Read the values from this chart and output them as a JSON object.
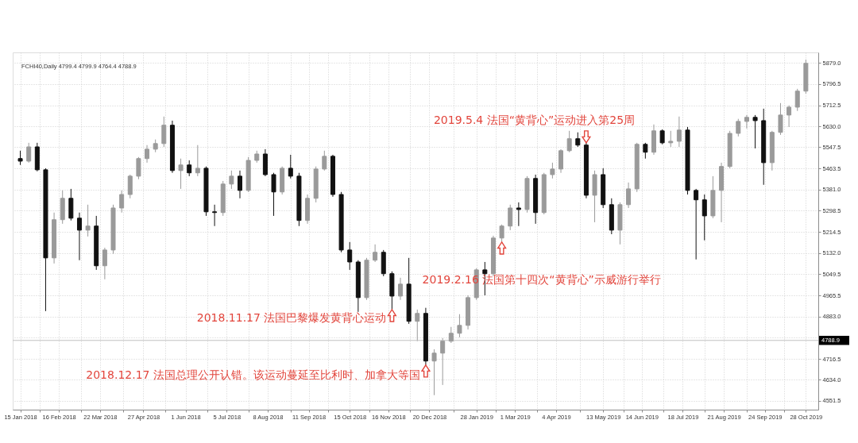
{
  "chart_data": {
    "type": "candlestick",
    "subtitle": "FCHI40,Daily 4799.4 4799.9 4764.4 4788.9",
    "x": [
      "2018-01-15",
      "2018-01-22",
      "2018-01-29",
      "2018-02-05",
      "2018-02-12",
      "2018-02-19",
      "2018-02-26",
      "2018-03-05",
      "2018-03-12",
      "2018-03-19",
      "2018-03-26",
      "2018-04-02",
      "2018-04-09",
      "2018-04-16",
      "2018-04-23",
      "2018-04-30",
      "2018-05-07",
      "2018-05-14",
      "2018-05-21",
      "2018-05-28",
      "2018-06-04",
      "2018-06-11",
      "2018-06-18",
      "2018-06-25",
      "2018-07-02",
      "2018-07-09",
      "2018-07-16",
      "2018-07-23",
      "2018-07-30",
      "2018-08-06",
      "2018-08-13",
      "2018-08-20",
      "2018-08-27",
      "2018-09-03",
      "2018-09-10",
      "2018-09-17",
      "2018-09-24",
      "2018-10-01",
      "2018-10-08",
      "2018-10-15",
      "2018-10-22",
      "2018-10-29",
      "2018-11-05",
      "2018-11-12",
      "2018-11-19",
      "2018-11-26",
      "2018-12-03",
      "2018-12-10",
      "2018-12-17",
      "2018-12-24",
      "2018-12-31",
      "2019-01-07",
      "2019-01-14",
      "2019-01-21",
      "2019-01-28",
      "2019-02-04",
      "2019-02-11",
      "2019-02-18",
      "2019-02-25",
      "2019-03-04",
      "2019-03-11",
      "2019-03-18",
      "2019-03-25",
      "2019-04-01",
      "2019-04-08",
      "2019-04-15",
      "2019-04-22",
      "2019-04-29",
      "2019-05-06",
      "2019-05-13",
      "2019-05-20",
      "2019-05-27",
      "2019-06-03",
      "2019-06-10",
      "2019-06-17",
      "2019-06-24",
      "2019-07-01",
      "2019-07-08",
      "2019-07-15",
      "2019-07-22",
      "2019-07-29",
      "2019-08-05",
      "2019-08-12",
      "2019-08-19",
      "2019-08-26",
      "2019-09-02",
      "2019-09-09",
      "2019-09-16",
      "2019-09-23",
      "2019-09-30",
      "2019-10-07",
      "2019-10-14",
      "2019-10-21",
      "2019-10-28"
    ],
    "ohlc": [
      [
        5503,
        5534,
        5478,
        5493
      ],
      [
        5493,
        5565,
        5487,
        5549
      ],
      [
        5549,
        5565,
        5453,
        5459
      ],
      [
        5459,
        5465,
        4904,
        5113
      ],
      [
        5113,
        5291,
        5091,
        5263
      ],
      [
        5263,
        5378,
        5247,
        5347
      ],
      [
        5347,
        5384,
        5260,
        5269
      ],
      [
        5269,
        5291,
        5104,
        5222
      ],
      [
        5222,
        5322,
        5197,
        5238
      ],
      [
        5238,
        5278,
        5066,
        5082
      ],
      [
        5082,
        5153,
        5029,
        5144
      ],
      [
        5144,
        5322,
        5129,
        5309
      ],
      [
        5309,
        5378,
        5291,
        5362
      ],
      [
        5362,
        5440,
        5347,
        5434
      ],
      [
        5434,
        5509,
        5422,
        5503
      ],
      [
        5503,
        5556,
        5487,
        5540
      ],
      [
        5540,
        5578,
        5528,
        5562
      ],
      [
        5562,
        5668,
        5549,
        5634
      ],
      [
        5634,
        5652,
        5447,
        5456
      ],
      [
        5456,
        5503,
        5384,
        5478
      ],
      [
        5478,
        5496,
        5434,
        5447
      ],
      [
        5447,
        5556,
        5434,
        5465
      ],
      [
        5465,
        5472,
        5278,
        5294
      ],
      [
        5294,
        5322,
        5238,
        5291
      ],
      [
        5291,
        5415,
        5278,
        5403
      ],
      [
        5403,
        5456,
        5384,
        5434
      ],
      [
        5434,
        5456,
        5347,
        5378
      ],
      [
        5378,
        5509,
        5372,
        5496
      ],
      [
        5496,
        5534,
        5487,
        5521
      ],
      [
        5521,
        5540,
        5434,
        5440
      ],
      [
        5440,
        5447,
        5278,
        5372
      ],
      [
        5372,
        5472,
        5362,
        5465
      ],
      [
        5465,
        5518,
        5425,
        5434
      ],
      [
        5434,
        5447,
        5238,
        5260
      ],
      [
        5260,
        5362,
        5247,
        5347
      ],
      [
        5347,
        5472,
        5331,
        5462
      ],
      [
        5462,
        5534,
        5456,
        5512
      ],
      [
        5512,
        5518,
        5353,
        5362
      ],
      [
        5362,
        5372,
        5135,
        5144
      ],
      [
        5144,
        5175,
        5066,
        5097
      ],
      [
        5097,
        5104,
        4901,
        4957
      ],
      [
        4957,
        5113,
        4948,
        5104
      ],
      [
        5104,
        5166,
        5097,
        5135
      ],
      [
        5135,
        5144,
        5041,
        5051
      ],
      [
        5051,
        5060,
        4910,
        4963
      ],
      [
        4963,
        5035,
        4948,
        5010
      ],
      [
        5010,
        5113,
        4854,
        4864
      ],
      [
        4864,
        4910,
        4786,
        4895
      ],
      [
        4895,
        4917,
        4692,
        4708
      ],
      [
        4708,
        4754,
        4574,
        4739
      ],
      [
        4739,
        4798,
        4614,
        4786
      ],
      [
        4786,
        4842,
        4779,
        4817
      ],
      [
        4817,
        4892,
        4801,
        4848
      ],
      [
        4848,
        4966,
        4832,
        4957
      ],
      [
        4957,
        5072,
        4948,
        5066
      ],
      [
        5066,
        5097,
        4966,
        5051
      ],
      [
        5051,
        5200,
        5041,
        5191
      ],
      [
        5191,
        5244,
        5175,
        5238
      ],
      [
        5238,
        5322,
        5222,
        5309
      ],
      [
        5309,
        5331,
        5238,
        5303
      ],
      [
        5303,
        5434,
        5291,
        5425
      ],
      [
        5425,
        5440,
        5247,
        5291
      ],
      [
        5291,
        5447,
        5284,
        5440
      ],
      [
        5440,
        5487,
        5425,
        5462
      ],
      [
        5462,
        5540,
        5447,
        5534
      ],
      [
        5534,
        5612,
        5528,
        5581
      ],
      [
        5581,
        5606,
        5549,
        5556
      ],
      [
        5556,
        5565,
        5347,
        5359
      ],
      [
        5359,
        5456,
        5253,
        5440
      ],
      [
        5440,
        5465,
        5309,
        5322
      ],
      [
        5322,
        5347,
        5206,
        5222
      ],
      [
        5222,
        5331,
        5166,
        5322
      ],
      [
        5322,
        5409,
        5309,
        5384
      ],
      [
        5384,
        5565,
        5372,
        5559
      ],
      [
        5559,
        5565,
        5503,
        5528
      ],
      [
        5528,
        5637,
        5518,
        5612
      ],
      [
        5612,
        5618,
        5559,
        5565
      ],
      [
        5565,
        5612,
        5549,
        5571
      ],
      [
        5571,
        5668,
        5549,
        5615
      ],
      [
        5615,
        5627,
        5362,
        5378
      ],
      [
        5378,
        5384,
        5107,
        5341
      ],
      [
        5341,
        5362,
        5182,
        5278
      ],
      [
        5278,
        5434,
        5269,
        5378
      ],
      [
        5378,
        5487,
        5253,
        5472
      ],
      [
        5472,
        5612,
        5465,
        5602
      ],
      [
        5602,
        5659,
        5590,
        5649
      ],
      [
        5649,
        5674,
        5621,
        5665
      ],
      [
        5665,
        5674,
        5543,
        5652
      ],
      [
        5652,
        5699,
        5400,
        5487
      ],
      [
        5487,
        5612,
        5456,
        5606
      ],
      [
        5606,
        5721,
        5596,
        5674
      ],
      [
        5674,
        5712,
        5627,
        5705
      ],
      [
        5705,
        5777,
        5690,
        5768
      ],
      [
        5768,
        5892,
        5758,
        5877
      ]
    ],
    "colors": [
      "#111111",
      "#9a9a9a",
      "#111111",
      "#111111",
      "#9a9a9a",
      "#9a9a9a",
      "#111111",
      "#111111",
      "#9a9a9a",
      "#111111",
      "#9a9a9a",
      "#9a9a9a",
      "#9a9a9a",
      "#9a9a9a",
      "#9a9a9a",
      "#9a9a9a",
      "#9a9a9a",
      "#9a9a9a",
      "#111111",
      "#9a9a9a",
      "#111111",
      "#9a9a9a",
      "#111111",
      "#111111",
      "#9a9a9a",
      "#9a9a9a",
      "#111111",
      "#9a9a9a",
      "#9a9a9a",
      "#111111",
      "#111111",
      "#9a9a9a",
      "#111111",
      "#111111",
      "#9a9a9a",
      "#9a9a9a",
      "#9a9a9a",
      "#111111",
      "#111111",
      "#111111",
      "#111111",
      "#9a9a9a",
      "#9a9a9a",
      "#111111",
      "#111111",
      "#9a9a9a",
      "#111111",
      "#9a9a9a",
      "#111111",
      "#9a9a9a",
      "#9a9a9a",
      "#9a9a9a",
      "#9a9a9a",
      "#9a9a9a",
      "#9a9a9a",
      "#111111",
      "#9a9a9a",
      "#9a9a9a",
      "#9a9a9a",
      "#111111",
      "#9a9a9a",
      "#111111",
      "#9a9a9a",
      "#9a9a9a",
      "#9a9a9a",
      "#9a9a9a",
      "#111111",
      "#111111",
      "#9a9a9a",
      "#111111",
      "#111111",
      "#9a9a9a",
      "#9a9a9a",
      "#9a9a9a",
      "#111111",
      "#9a9a9a",
      "#111111",
      "#9a9a9a",
      "#9a9a9a",
      "#111111",
      "#111111",
      "#111111",
      "#9a9a9a",
      "#9a9a9a",
      "#9a9a9a",
      "#9a9a9a",
      "#9a9a9a",
      "#111111",
      "#111111",
      "#9a9a9a",
      "#9a9a9a",
      "#9a9a9a",
      "#9a9a9a",
      "#9a9a9a"
    ],
    "xlim": [
      "2018-01-12",
      "2019-11-04"
    ],
    "xticks": [
      {
        "value": "2018-01-15",
        "label": "15 Jan 2018"
      },
      {
        "value": "2018-01-31",
        "label": null
      },
      {
        "value": "2018-02-16",
        "label": "16 Feb 2018"
      },
      {
        "value": "2018-03-06",
        "label": null
      },
      {
        "value": "2018-03-22",
        "label": "22 Mar 2018"
      },
      {
        "value": "2018-04-10",
        "label": null
      },
      {
        "value": "2018-04-27",
        "label": "27 Apr 2018"
      },
      {
        "value": "2018-05-15",
        "label": null
      },
      {
        "value": "2018-06-01",
        "label": "1 Jun 2018"
      },
      {
        "value": "2018-06-19",
        "label": null
      },
      {
        "value": "2018-07-05",
        "label": "5 Jul 2018"
      },
      {
        "value": "2018-07-23",
        "label": null
      },
      {
        "value": "2018-08-08",
        "label": "8 Aug 2018"
      },
      {
        "value": "2018-08-27",
        "label": null
      },
      {
        "value": "2018-09-11",
        "label": "11 Sep 2018"
      },
      {
        "value": "2018-09-27",
        "label": null
      },
      {
        "value": "2018-10-15",
        "label": "15 Oct 2018"
      },
      {
        "value": "2018-10-31",
        "label": null
      },
      {
        "value": "2018-11-16",
        "label": "16 Nov 2018"
      },
      {
        "value": "2018-12-04",
        "label": null
      },
      {
        "value": "2018-12-20",
        "label": "20 Dec 2018"
      },
      {
        "value": "2019-01-09",
        "label": null
      },
      {
        "value": "2019-01-28",
        "label": "28 Jan 2019"
      },
      {
        "value": "2019-02-13",
        "label": null
      },
      {
        "value": "2019-03-01",
        "label": "1 Mar 2019"
      },
      {
        "value": "2019-03-19",
        "label": null
      },
      {
        "value": "2019-04-04",
        "label": "4 Apr 2019"
      },
      {
        "value": "2019-04-24",
        "label": null
      },
      {
        "value": "2019-05-13",
        "label": "13 May 2019"
      },
      {
        "value": "2019-05-30",
        "label": null
      },
      {
        "value": "2019-06-14",
        "label": "14 Jun 2019"
      },
      {
        "value": "2019-07-02",
        "label": null
      },
      {
        "value": "2019-07-18",
        "label": "18 Jul 2019"
      },
      {
        "value": "2019-08-05",
        "label": null
      },
      {
        "value": "2019-08-21",
        "label": "21 Aug 2019"
      },
      {
        "value": "2019-09-09",
        "label": null
      },
      {
        "value": "2019-09-24",
        "label": "24 Sep 2019"
      },
      {
        "value": "2019-10-10",
        "label": null
      },
      {
        "value": "2019-10-28",
        "label": "28 Oct 2019"
      }
    ],
    "ylim": [
      4517,
      5920
    ],
    "yticks": [
      {
        "value": 4551.5,
        "label": "4551.5"
      },
      {
        "value": 4634,
        "label": "4634.0"
      },
      {
        "value": 4716.5,
        "label": "4716.5"
      },
      {
        "value": 4799.5,
        "label": null
      },
      {
        "value": 4883,
        "label": "4883.0"
      },
      {
        "value": 4965.5,
        "label": "4965.5"
      },
      {
        "value": 5049.5,
        "label": "5049.5"
      },
      {
        "value": 5132,
        "label": "5132.0"
      },
      {
        "value": 5214.5,
        "label": "5214.5"
      },
      {
        "value": 5298.5,
        "label": "5298.5"
      },
      {
        "value": 5381,
        "label": "5381.0"
      },
      {
        "value": 5463.5,
        "label": "5463.5"
      },
      {
        "value": 5547.5,
        "label": "5547.5"
      },
      {
        "value": 5630,
        "label": "5630.0"
      },
      {
        "value": 5712.5,
        "label": "5712.5"
      },
      {
        "value": 5796.5,
        "label": "5796.5"
      },
      {
        "value": 5879,
        "label": "5879.0"
      }
    ],
    "grid": true,
    "ref_lines": [
      {
        "axis": "y",
        "value": 4788.9,
        "label": "4788.9",
        "color": "#c0c0c0"
      }
    ],
    "annotations": [
      {
        "text": "2018.11.17 法国巴黎爆发黄背心运动",
        "x": "2018-11-19",
        "y": 4910
      },
      {
        "text": "2018.12.17  法国总理公开认错。该运动蔓延至比利时、加拿大等国",
        "x": "2018-12-17",
        "y": 4692
      },
      {
        "text": "2019.2.16 法国第十四次“黄背心”示威游行举行",
        "x": "2019-02-18",
        "y": 5175
      },
      {
        "text": "2019.5.4  法国“黄背心”运动进入第25周",
        "x": "2019-04-29",
        "y": 5565
      }
    ]
  }
}
